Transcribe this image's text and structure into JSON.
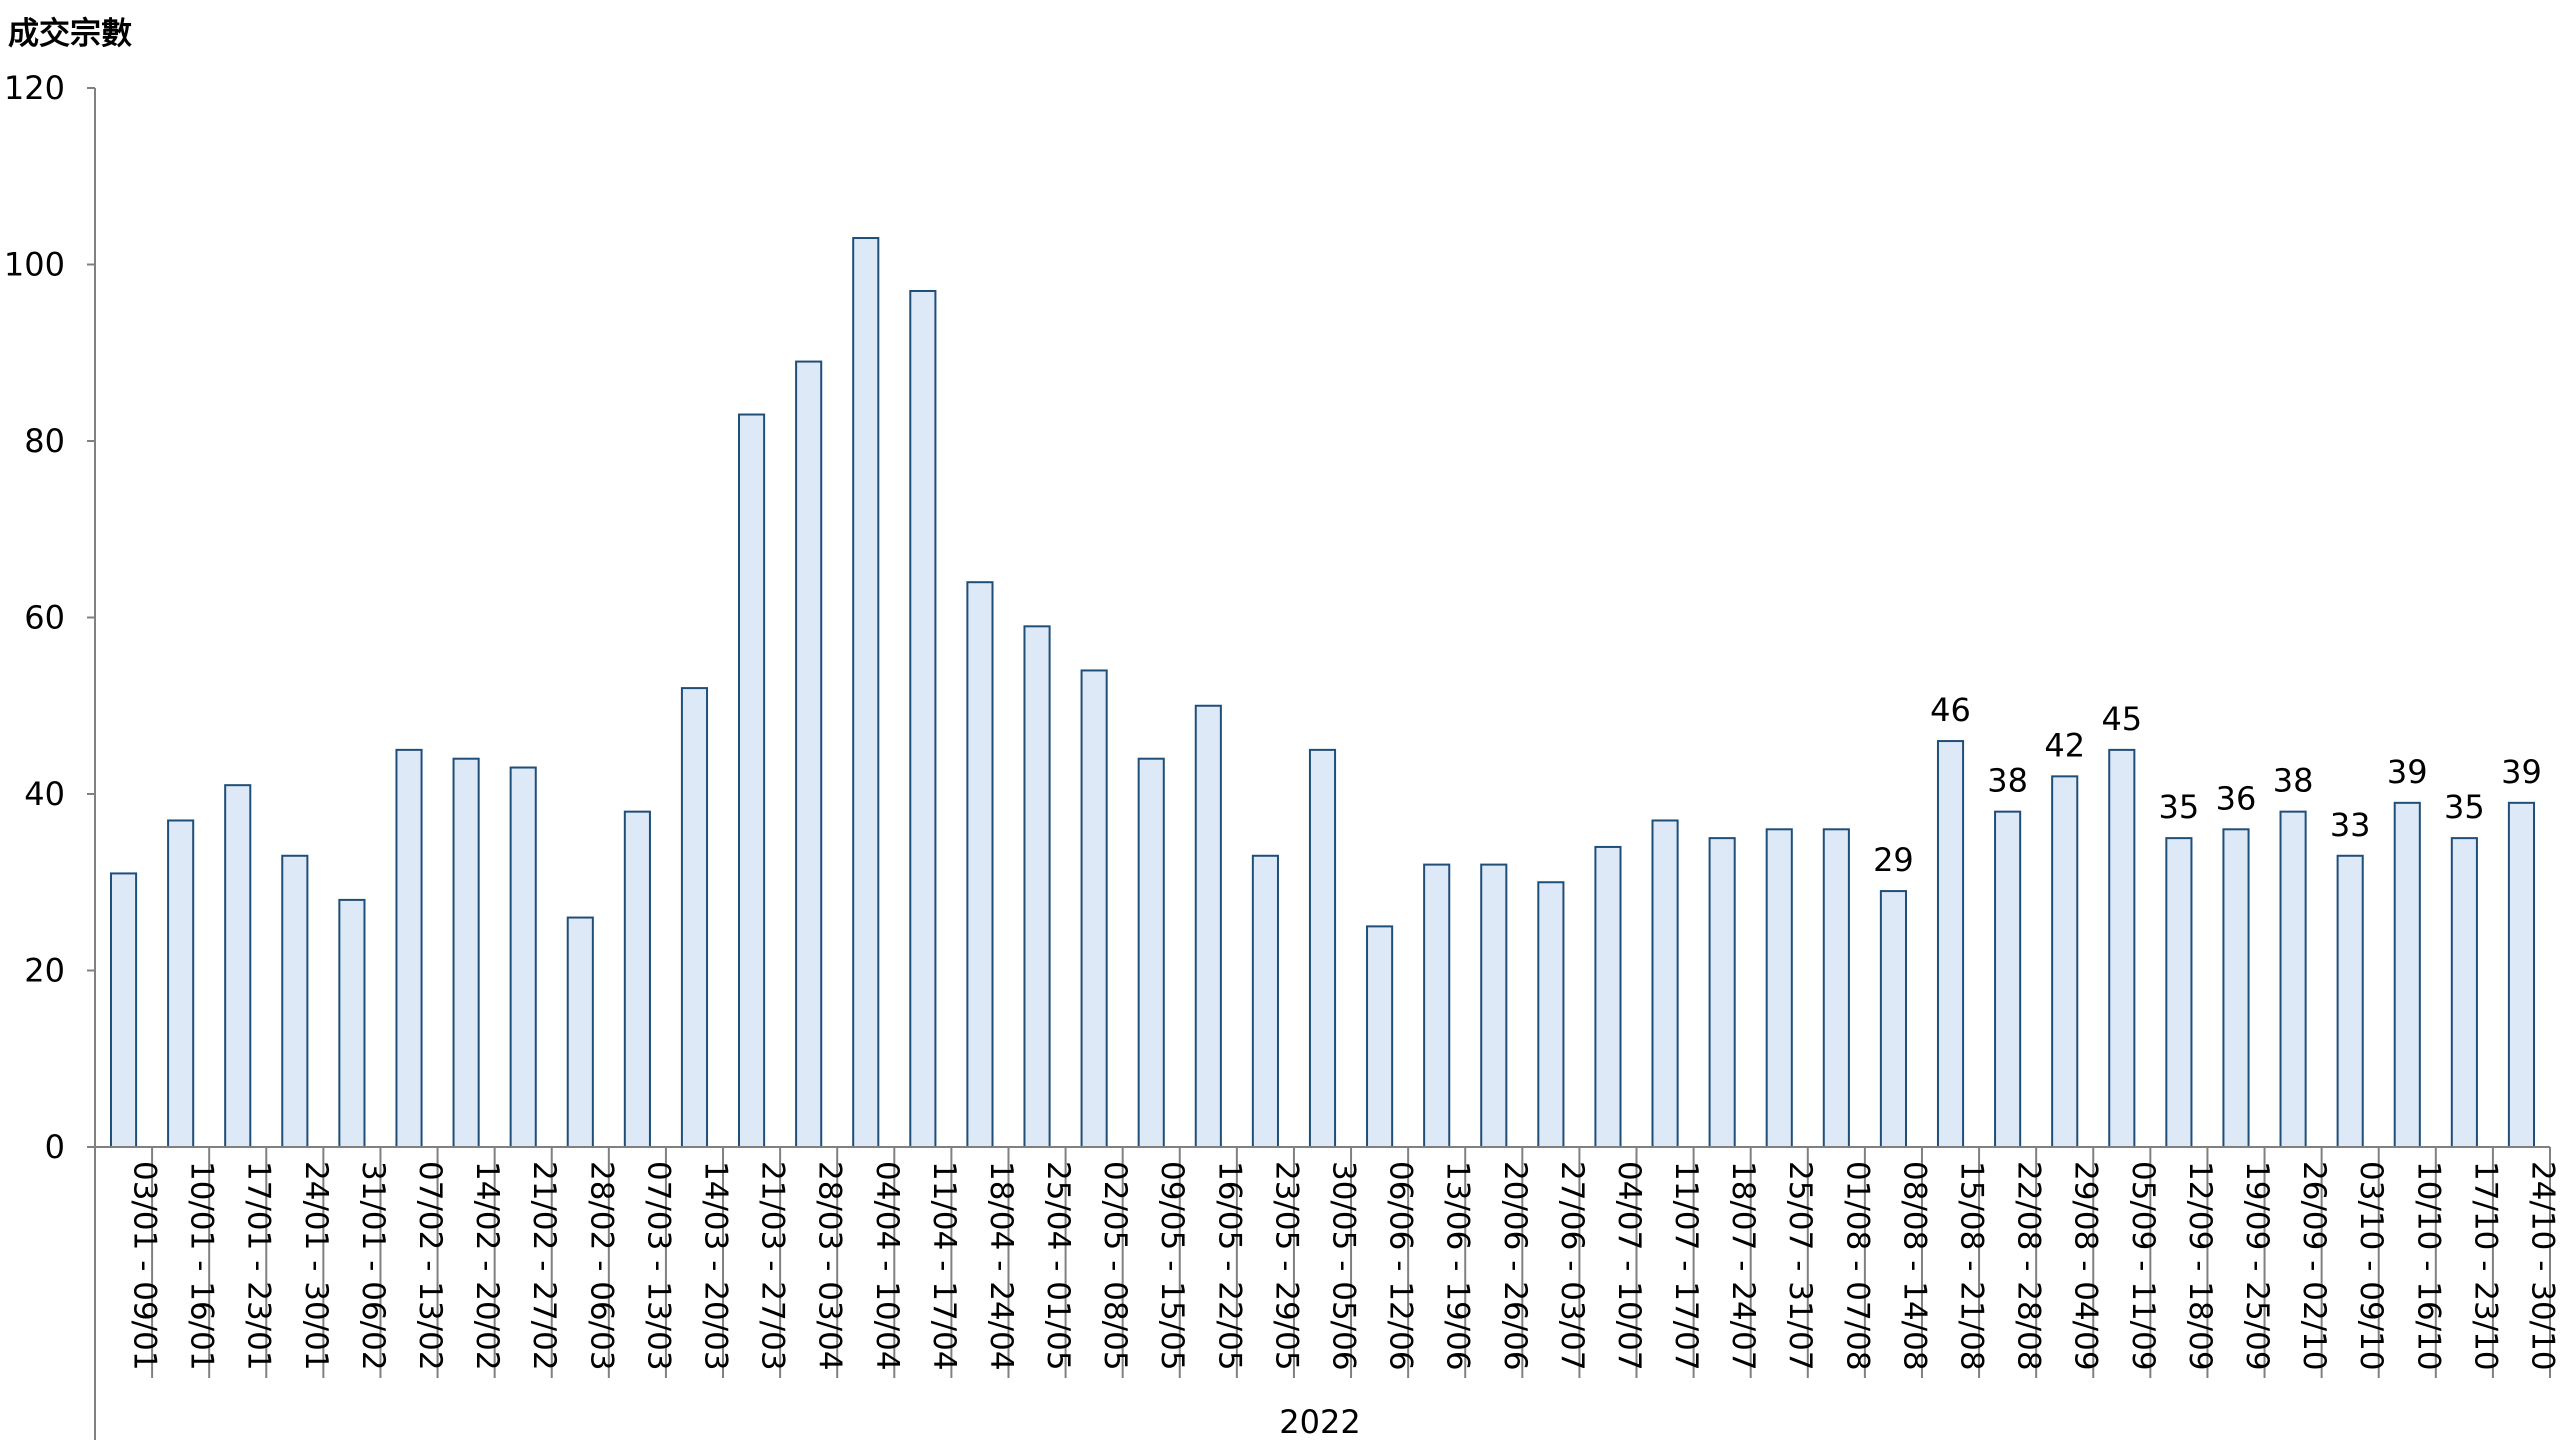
{
  "chart_data": {
    "type": "bar",
    "title": "",
    "ylabel": "成交宗數",
    "xlabel": "",
    "group_label": "2022",
    "ylim": [
      0,
      120
    ],
    "yticks": [
      0,
      20,
      40,
      60,
      80,
      100,
      120
    ],
    "grid": false,
    "categories": [
      "03/01 - 09/01",
      "10/01 - 16/01",
      "17/01 - 23/01",
      "24/01 - 30/01",
      "31/01 - 06/02",
      "07/02 - 13/02",
      "14/02 - 20/02",
      "21/02 - 27/02",
      "28/02 - 06/03",
      "07/03 - 13/03",
      "14/03 - 20/03",
      "21/03 - 27/03",
      "28/03 - 03/04",
      "04/04 - 10/04",
      "11/04 - 17/04",
      "18/04 - 24/04",
      "25/04 - 01/05",
      "02/05 - 08/05",
      "09/05 - 15/05",
      "16/05 - 22/05",
      "23/05 - 29/05",
      "30/05 - 05/06",
      "06/06 - 12/06",
      "13/06 - 19/06",
      "20/06 - 26/06",
      "27/06 - 03/07",
      "04/07 - 10/07",
      "11/07 - 17/07",
      "18/07 - 24/07",
      "25/07 - 31/07",
      "01/08 - 07/08",
      "08/08 - 14/08",
      "15/08 - 21/08",
      "22/08 - 28/08",
      "29/08 - 04/09",
      "05/09 - 11/09",
      "12/09 - 18/09",
      "19/09 - 25/09",
      "26/09 - 02/10",
      "03/10 - 09/10",
      "10/10 - 16/10",
      "17/10 - 23/10",
      "24/10 - 30/10"
    ],
    "values": [
      31,
      37,
      41,
      33,
      28,
      45,
      44,
      43,
      26,
      38,
      52,
      83,
      89,
      103,
      97,
      64,
      59,
      54,
      44,
      50,
      33,
      45,
      25,
      32,
      32,
      30,
      34,
      37,
      35,
      36,
      36,
      29,
      46,
      38,
      42,
      45,
      35,
      36,
      38,
      33,
      39,
      35,
      39
    ],
    "data_labels": [
      null,
      null,
      null,
      null,
      null,
      null,
      null,
      null,
      null,
      null,
      null,
      null,
      null,
      null,
      null,
      null,
      null,
      null,
      null,
      null,
      null,
      null,
      null,
      null,
      null,
      null,
      null,
      null,
      null,
      null,
      null,
      "29",
      "46",
      "38",
      "42",
      "45",
      "35",
      "36",
      "38",
      "33",
      "39",
      "35",
      "39"
    ],
    "colors": {
      "bar_fill": "#dde9f6",
      "bar_stroke": "#1f4e79",
      "axis": "#808080"
    }
  }
}
